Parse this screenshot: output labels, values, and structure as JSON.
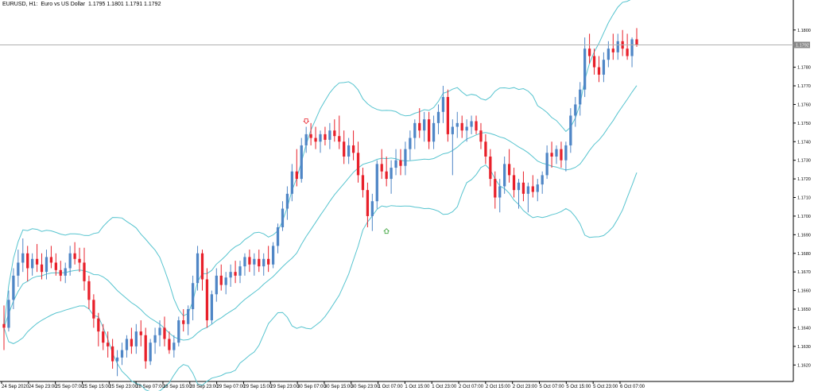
{
  "header": {
    "symbol": "EURUSD, H1:",
    "description": "Euro vs US Dollar",
    "ohlc": "1.1795 1.1801 1.1791 1.1792"
  },
  "current_price_label": "1.1792",
  "colors": {
    "bull": "#4f86c6",
    "bear": "#e8202a",
    "band": "#57c4cf",
    "grid_axis": "#000000",
    "price_line": "#b0b0b0",
    "arrow_up": "#3aa33a",
    "arrow_down": "#e8202a"
  },
  "chart_data": {
    "type": "candlestick",
    "title": "EURUSD, H1: Euro vs US Dollar",
    "ylim": [
      1.1612,
      1.1811
    ],
    "y_ticks": [
      "1.1800",
      "1.1790",
      "1.1780",
      "1.1770",
      "1.1760",
      "1.1750",
      "1.1740",
      "1.1730",
      "1.1720",
      "1.1710",
      "1.1700",
      "1.1690",
      "1.1680",
      "1.1670",
      "1.1660",
      "1.1650",
      "1.1640",
      "1.1630",
      "1.1620"
    ],
    "x_labels": [
      "24 Sep 2020",
      "24 Sep 23:00",
      "25 Sep 07:00",
      "25 Sep 15:00",
      "25 Sep 23:00",
      "28 Sep 07:00",
      "28 Sep 15:00",
      "28 Sep 23:00",
      "29 Sep 07:00",
      "29 Sep 15:00",
      "29 Sep 23:00",
      "30 Sep 07:00",
      "30 Sep 15:00",
      "30 Sep 23:00",
      "1 Oct 07:00",
      "1 Oct 15:00",
      "1 Oct 23:00",
      "2 Oct 07:00",
      "2 Oct 15:00",
      "2 Oct 23:00",
      "5 Oct 07:00",
      "5 Oct 15:00",
      "5 Oct 23:00",
      "6 Oct 07:00"
    ],
    "current_price": 1.1792,
    "candles": [
      [
        1.1642,
        1.1652,
        1.1628,
        1.164
      ],
      [
        1.164,
        1.166,
        1.1638,
        1.1655
      ],
      [
        1.1655,
        1.1672,
        1.165,
        1.1668
      ],
      [
        1.1668,
        1.1682,
        1.1662,
        1.1675
      ],
      [
        1.1675,
        1.1688,
        1.167,
        1.168
      ],
      [
        1.168,
        1.1684,
        1.1665,
        1.1672
      ],
      [
        1.1672,
        1.168,
        1.1668,
        1.1677
      ],
      [
        1.1677,
        1.1685,
        1.167,
        1.1674
      ],
      [
        1.1674,
        1.168,
        1.1666,
        1.167
      ],
      [
        1.167,
        1.1682,
        1.1666,
        1.1678
      ],
      [
        1.1678,
        1.1684,
        1.1672,
        1.1675
      ],
      [
        1.1675,
        1.168,
        1.1668,
        1.1671
      ],
      [
        1.1671,
        1.1676,
        1.1665,
        1.1668
      ],
      [
        1.1668,
        1.1675,
        1.1664,
        1.1672
      ],
      [
        1.1672,
        1.1684,
        1.1668,
        1.168
      ],
      [
        1.168,
        1.1686,
        1.1674,
        1.1677
      ],
      [
        1.1677,
        1.1683,
        1.167,
        1.1675
      ],
      [
        1.1675,
        1.1683,
        1.166,
        1.1665
      ],
      [
        1.1665,
        1.1668,
        1.165,
        1.1655
      ],
      [
        1.1655,
        1.1658,
        1.164,
        1.1645
      ],
      [
        1.1645,
        1.1648,
        1.163,
        1.1638
      ],
      [
        1.1638,
        1.1642,
        1.1628,
        1.1632
      ],
      [
        1.1632,
        1.1638,
        1.1624,
        1.163
      ],
      [
        1.163,
        1.1634,
        1.1618,
        1.1622
      ],
      [
        1.1622,
        1.1628,
        1.1614,
        1.1624
      ],
      [
        1.1624,
        1.1632,
        1.162,
        1.1628
      ],
      [
        1.1628,
        1.1636,
        1.1624,
        1.1634
      ],
      [
        1.1634,
        1.164,
        1.1626,
        1.163
      ],
      [
        1.163,
        1.1642,
        1.1626,
        1.1638
      ],
      [
        1.1638,
        1.1644,
        1.163,
        1.1636
      ],
      [
        1.1636,
        1.164,
        1.1618,
        1.1622
      ],
      [
        1.1622,
        1.1634,
        1.162,
        1.1632
      ],
      [
        1.1632,
        1.164,
        1.1626,
        1.1636
      ],
      [
        1.1636,
        1.1644,
        1.163,
        1.164
      ],
      [
        1.164,
        1.1646,
        1.163,
        1.1634
      ],
      [
        1.1634,
        1.1638,
        1.1626,
        1.1628
      ],
      [
        1.1628,
        1.1636,
        1.1624,
        1.1632
      ],
      [
        1.1632,
        1.1646,
        1.163,
        1.1644
      ],
      [
        1.1644,
        1.165,
        1.1638,
        1.1642
      ],
      [
        1.1642,
        1.1652,
        1.1636,
        1.165
      ],
      [
        1.165,
        1.1668,
        1.1644,
        1.1664
      ],
      [
        1.1664,
        1.1684,
        1.166,
        1.168
      ],
      [
        1.168,
        1.1682,
        1.166,
        1.1666
      ],
      [
        1.1666,
        1.1672,
        1.164,
        1.1644
      ],
      [
        1.1644,
        1.166,
        1.1642,
        1.1658
      ],
      [
        1.1658,
        1.1672,
        1.1654,
        1.1668
      ],
      [
        1.1668,
        1.1674,
        1.166,
        1.1663
      ],
      [
        1.1663,
        1.167,
        1.1658,
        1.1667
      ],
      [
        1.1667,
        1.1674,
        1.1662,
        1.167
      ],
      [
        1.167,
        1.1676,
        1.1664,
        1.1668
      ],
      [
        1.1668,
        1.1676,
        1.1664,
        1.1673
      ],
      [
        1.1673,
        1.168,
        1.1668,
        1.1678
      ],
      [
        1.1678,
        1.1682,
        1.167,
        1.1674
      ],
      [
        1.1674,
        1.168,
        1.1668,
        1.1677
      ],
      [
        1.1677,
        1.1682,
        1.167,
        1.1673
      ],
      [
        1.1673,
        1.168,
        1.1668,
        1.1677
      ],
      [
        1.1677,
        1.1684,
        1.167,
        1.1674
      ],
      [
        1.1674,
        1.1686,
        1.1672,
        1.1684
      ],
      [
        1.1684,
        1.1696,
        1.168,
        1.1694
      ],
      [
        1.1694,
        1.1708,
        1.1692,
        1.1704
      ],
      [
        1.1704,
        1.1716,
        1.1698,
        1.1712
      ],
      [
        1.1712,
        1.1728,
        1.1708,
        1.1724
      ],
      [
        1.1724,
        1.1736,
        1.1716,
        1.172
      ],
      [
        1.172,
        1.1742,
        1.1718,
        1.1738
      ],
      [
        1.1738,
        1.1748,
        1.1734,
        1.1744
      ],
      [
        1.1744,
        1.175,
        1.1738,
        1.1742
      ],
      [
        1.1742,
        1.1748,
        1.1736,
        1.174
      ],
      [
        1.174,
        1.1746,
        1.1734,
        1.1744
      ],
      [
        1.1744,
        1.1748,
        1.1738,
        1.1741
      ],
      [
        1.1741,
        1.175,
        1.1736,
        1.1746
      ],
      [
        1.1746,
        1.1752,
        1.174,
        1.1743
      ],
      [
        1.1743,
        1.1754,
        1.1736,
        1.174
      ],
      [
        1.174,
        1.1746,
        1.1728,
        1.1732
      ],
      [
        1.1732,
        1.1742,
        1.1728,
        1.1738
      ],
      [
        1.1738,
        1.1746,
        1.173,
        1.1734
      ],
      [
        1.1734,
        1.174,
        1.1718,
        1.1722
      ],
      [
        1.1722,
        1.1726,
        1.171,
        1.1714
      ],
      [
        1.1714,
        1.1718,
        1.1694,
        1.17
      ],
      [
        1.17,
        1.1712,
        1.1692,
        1.1708
      ],
      [
        1.1708,
        1.173,
        1.1704,
        1.1728
      ],
      [
        1.1728,
        1.1736,
        1.172,
        1.1724
      ],
      [
        1.1724,
        1.1732,
        1.1716,
        1.172
      ],
      [
        1.172,
        1.173,
        1.1712,
        1.1726
      ],
      [
        1.1726,
        1.1736,
        1.1722,
        1.173
      ],
      [
        1.173,
        1.1736,
        1.1722,
        1.1727
      ],
      [
        1.1727,
        1.174,
        1.1722,
        1.1736
      ],
      [
        1.1736,
        1.1746,
        1.173,
        1.1742
      ],
      [
        1.1742,
        1.1752,
        1.1736,
        1.175
      ],
      [
        1.175,
        1.1758,
        1.1742,
        1.1746
      ],
      [
        1.1746,
        1.1756,
        1.174,
        1.1752
      ],
      [
        1.1752,
        1.1756,
        1.1736,
        1.174
      ],
      [
        1.174,
        1.1754,
        1.1736,
        1.175
      ],
      [
        1.175,
        1.176,
        1.1744,
        1.1756
      ],
      [
        1.1756,
        1.177,
        1.175,
        1.1764
      ],
      [
        1.1764,
        1.1768,
        1.174,
        1.1744
      ],
      [
        1.1744,
        1.1752,
        1.1722,
        1.1748
      ],
      [
        1.1748,
        1.1756,
        1.1742,
        1.175
      ],
      [
        1.175,
        1.1754,
        1.1742,
        1.1746
      ],
      [
        1.1746,
        1.1752,
        1.174,
        1.1748
      ],
      [
        1.1748,
        1.1754,
        1.1744,
        1.1751
      ],
      [
        1.1751,
        1.1754,
        1.1744,
        1.1746
      ],
      [
        1.1746,
        1.175,
        1.1736,
        1.174
      ],
      [
        1.174,
        1.1744,
        1.1728,
        1.1732
      ],
      [
        1.1732,
        1.1736,
        1.1716,
        1.172
      ],
      [
        1.172,
        1.1724,
        1.1704,
        1.171
      ],
      [
        1.171,
        1.172,
        1.1702,
        1.1716
      ],
      [
        1.1716,
        1.1732,
        1.1712,
        1.1728
      ],
      [
        1.1728,
        1.1736,
        1.1718,
        1.1722
      ],
      [
        1.1722,
        1.1726,
        1.171,
        1.1714
      ],
      [
        1.1714,
        1.172,
        1.1704,
        1.1718
      ],
      [
        1.1718,
        1.1724,
        1.1708,
        1.1712
      ],
      [
        1.1712,
        1.1718,
        1.1702,
        1.1716
      ],
      [
        1.1716,
        1.1722,
        1.171,
        1.1713
      ],
      [
        1.1713,
        1.172,
        1.1708,
        1.1717
      ],
      [
        1.1717,
        1.1724,
        1.1712,
        1.1722
      ],
      [
        1.1722,
        1.1738,
        1.172,
        1.1734
      ],
      [
        1.1734,
        1.174,
        1.1726,
        1.1732
      ],
      [
        1.1732,
        1.1738,
        1.1728,
        1.1736
      ],
      [
        1.1736,
        1.174,
        1.1726,
        1.173
      ],
      [
        1.173,
        1.174,
        1.1724,
        1.1738
      ],
      [
        1.1738,
        1.1758,
        1.1734,
        1.1754
      ],
      [
        1.1754,
        1.1764,
        1.1748,
        1.176
      ],
      [
        1.176,
        1.1772,
        1.1754,
        1.1768
      ],
      [
        1.1768,
        1.1796,
        1.1764,
        1.179
      ],
      [
        1.179,
        1.1798,
        1.1782,
        1.1786
      ],
      [
        1.1786,
        1.179,
        1.1776,
        1.178
      ],
      [
        1.178,
        1.1786,
        1.1772,
        1.1776
      ],
      [
        1.1776,
        1.1788,
        1.1772,
        1.1784
      ],
      [
        1.1784,
        1.1794,
        1.178,
        1.179
      ],
      [
        1.179,
        1.1798,
        1.1784,
        1.1788
      ],
      [
        1.1788,
        1.1798,
        1.1784,
        1.1794
      ],
      [
        1.1794,
        1.18,
        1.1786,
        1.179
      ],
      [
        1.179,
        1.1798,
        1.1784,
        1.1786
      ],
      [
        1.1786,
        1.1796,
        1.178,
        1.1795
      ],
      [
        1.1795,
        1.1801,
        1.1791,
        1.1792
      ]
    ],
    "markers": [
      {
        "type": "sell-arrow",
        "index": 64,
        "price": 1.1751
      },
      {
        "type": "buy-arrow",
        "index": 81,
        "price": 1.1692
      }
    ]
  }
}
